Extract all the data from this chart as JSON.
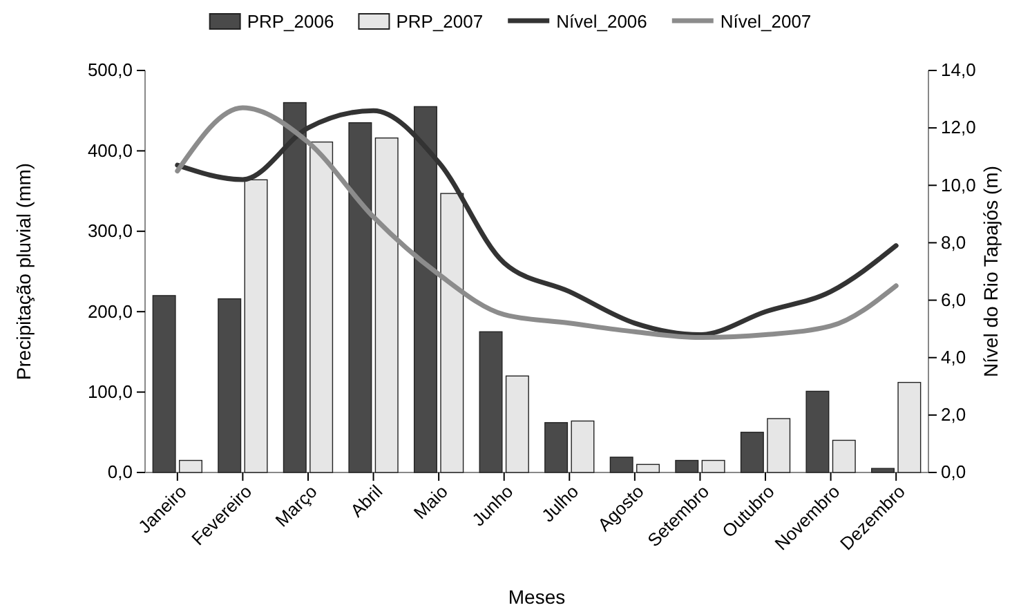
{
  "chart_data": {
    "type": "bar",
    "xlabel": "Meses",
    "ylabel": "Precipitação pluvial (mm)",
    "y2label": "Nível do Rio Tapajós (m)",
    "categories": [
      "Janeiro",
      "Fevereiro",
      "Março",
      "Abril",
      "Maio",
      "Junho",
      "Julho",
      "Agosto",
      "Setembro",
      "Outubro",
      "Novembro",
      "Dezembro"
    ],
    "series": [
      {
        "name": "PRP_2006",
        "color": "#4a4a4a",
        "values": [
          220,
          216,
          460,
          435,
          455,
          175,
          62,
          19,
          15,
          50,
          101,
          5
        ]
      },
      {
        "name": "PRP_2007",
        "color": "#e6e6e6",
        "values": [
          15,
          364,
          411,
          416,
          347,
          120,
          64,
          10,
          15,
          67,
          40,
          112
        ]
      },
      {
        "name": "Nível_2006",
        "type": "line",
        "axis": "y2",
        "color": "#333333",
        "values": [
          10.7,
          10.2,
          12.0,
          12.6,
          10.8,
          7.3,
          6.3,
          5.2,
          4.8,
          5.6,
          6.3,
          7.9
        ]
      },
      {
        "name": "Nível_2007",
        "type": "line",
        "axis": "y2",
        "color": "#8c8c8c",
        "values": [
          10.5,
          12.7,
          11.5,
          8.9,
          6.9,
          5.5,
          5.2,
          4.9,
          4.7,
          4.8,
          5.1,
          6.5
        ]
      }
    ],
    "ylim": [
      0,
      500
    ],
    "yticks": [
      {
        "value": 0,
        "label": "0,0"
      },
      {
        "value": 100,
        "label": "100,0"
      },
      {
        "value": 200,
        "label": "200,0"
      },
      {
        "value": 300,
        "label": "300,0"
      },
      {
        "value": 400,
        "label": "400,0"
      },
      {
        "value": 500,
        "label": "500,0"
      }
    ],
    "y2lim": [
      0,
      14
    ],
    "y2ticks": [
      {
        "value": 0,
        "label": "0,0"
      },
      {
        "value": 2,
        "label": "2,0"
      },
      {
        "value": 4,
        "label": "4,0"
      },
      {
        "value": 6,
        "label": "6,0"
      },
      {
        "value": 8,
        "label": "8,0"
      },
      {
        "value": 10,
        "label": "10,0"
      },
      {
        "value": 12,
        "label": "12,0"
      },
      {
        "value": 14,
        "label": "14,0"
      }
    ],
    "legend": "top",
    "marker": "none",
    "line_style": "solid"
  }
}
